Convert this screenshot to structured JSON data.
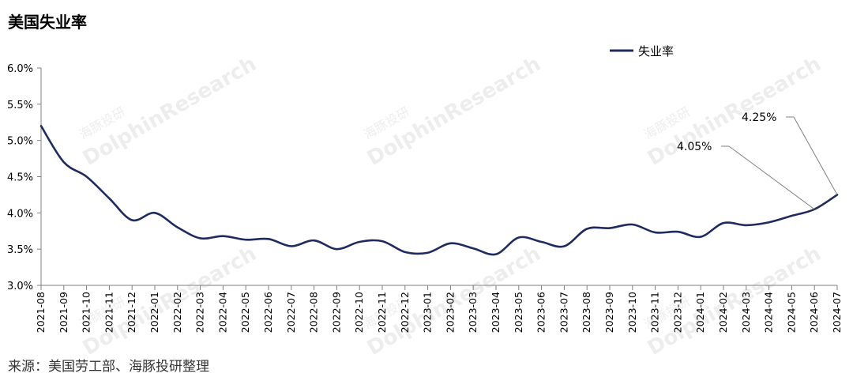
{
  "title": "美国失业率",
  "source": "来源：美国劳工部、海豚投研整理",
  "watermark": {
    "en": "DolphinResearch",
    "cn": "海豚投研"
  },
  "chart_data": {
    "type": "line",
    "title": "美国失业率",
    "xlabel": "",
    "ylabel": "",
    "ylim": [
      3.0,
      6.0
    ],
    "y_ticks": [
      "3.0%",
      "3.5%",
      "4.0%",
      "4.5%",
      "5.0%",
      "5.5%",
      "6.0%"
    ],
    "y_tick_values": [
      3.0,
      3.5,
      4.0,
      4.5,
      5.0,
      5.5,
      6.0
    ],
    "grid": false,
    "legend_position": "top-right",
    "line_color": "#1f2a5e",
    "categories": [
      "2021-08",
      "2021-09",
      "2021-10",
      "2021-11",
      "2021-12",
      "2022-01",
      "2022-02",
      "2022-03",
      "2022-04",
      "2022-05",
      "2022-06",
      "2022-07",
      "2022-08",
      "2022-09",
      "2022-10",
      "2022-11",
      "2022-12",
      "2023-01",
      "2023-02",
      "2023-03",
      "2023-04",
      "2023-05",
      "2023-06",
      "2023-07",
      "2023-08",
      "2023-09",
      "2023-10",
      "2023-11",
      "2023-12",
      "2024-01",
      "2024-02",
      "2024-03",
      "2024-04",
      "2024-05",
      "2024-06",
      "2024-07"
    ],
    "series": [
      {
        "name": "失业率",
        "values": [
          5.2,
          4.7,
          4.5,
          4.2,
          3.9,
          4.0,
          3.8,
          3.65,
          3.68,
          3.63,
          3.64,
          3.54,
          3.62,
          3.5,
          3.6,
          3.61,
          3.46,
          3.45,
          3.58,
          3.51,
          3.43,
          3.66,
          3.6,
          3.54,
          3.78,
          3.79,
          3.84,
          3.73,
          3.74,
          3.67,
          3.86,
          3.83,
          3.87,
          3.96,
          4.05,
          4.25
        ]
      }
    ],
    "annotations": [
      {
        "text": "4.05%",
        "category": "2024-06",
        "value": 4.05
      },
      {
        "text": "4.25%",
        "category": "2024-07",
        "value": 4.25
      }
    ]
  }
}
